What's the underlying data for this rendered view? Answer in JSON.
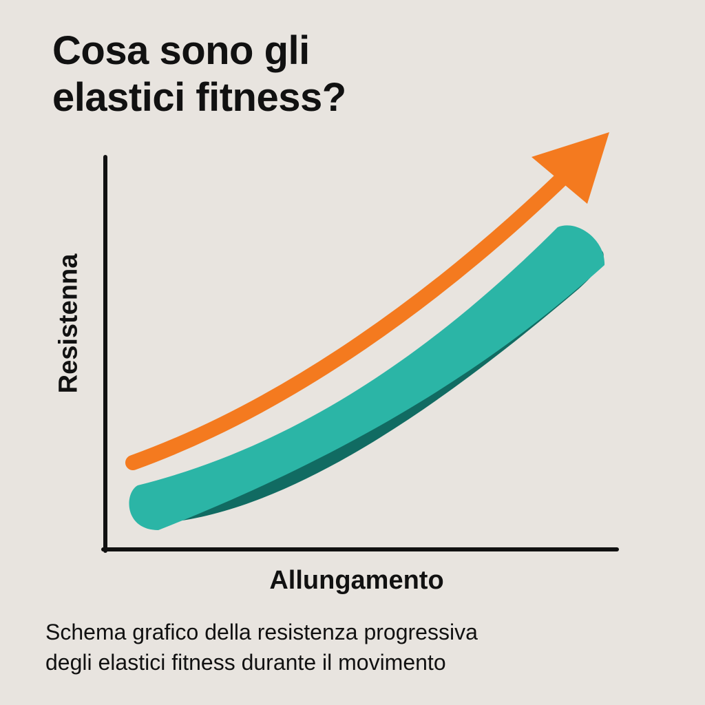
{
  "title": {
    "line1": "Cosa sono gli",
    "line2": "elastici fitness?"
  },
  "axes": {
    "y_label": "Resistenna",
    "x_label": "Allungamento"
  },
  "illustration": {
    "arrow_icon": "trend-up-arrow-icon",
    "band_icon": "resistance-band-icon",
    "colors": {
      "background": "#e8e4df",
      "axis": "#111111",
      "arrow": "#f47a1f",
      "band": "#2bb5a6",
      "band_shadow": "#116b62"
    }
  },
  "caption": {
    "line1": "Schema grafico della resistenza progressiva",
    "line2": "degli elastici fitness durante il movimento"
  }
}
